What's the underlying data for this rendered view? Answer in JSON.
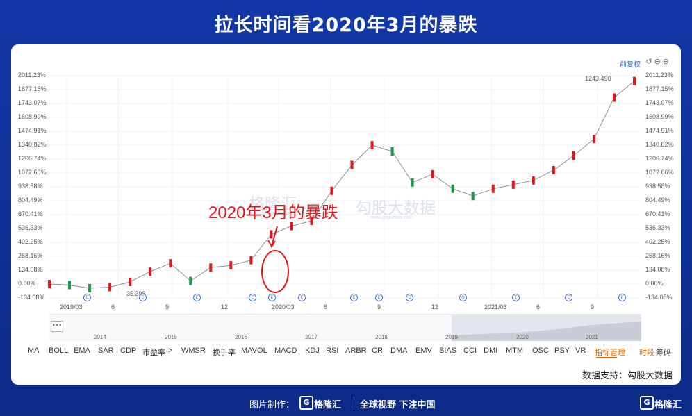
{
  "page_title": "拉长时间看2020年3月的暴跌",
  "corner_label": "前复权",
  "toolbar_icons": [
    "undo-icon",
    "zoom-out-icon",
    "zoom-in-icon"
  ],
  "annotation": "2020年3月的暴跌",
  "watermark": {
    "text1": "格隆汇",
    "sub1": "www.gelonghui.com",
    "text2": "勾股大数据",
    "sub2": "www.gogudata.com"
  },
  "navigator_years": [
    "2014",
    "2015",
    "2016",
    "2017",
    "2018",
    "2019",
    "2020",
    "2021"
  ],
  "indicator_tabs": [
    "MA",
    "BOLL",
    "EMA",
    "SAR",
    "CDP",
    "市盈率",
    ">",
    "WMSR",
    "换手率",
    "MAVOL",
    "MACD",
    "KDJ",
    "RSI",
    "ARBR",
    "CR",
    "DMA",
    "EMV",
    "BIAS",
    "CCI",
    "DMI",
    "MTM",
    "OSC",
    "PSY",
    "VR",
    "指标管理",
    "时段",
    "筹码"
  ],
  "highlight_tabs": [
    "指标管理",
    "时段"
  ],
  "data_support": "数据支持：勾股大数据",
  "footer": {
    "made_by": "图片制作：",
    "brand": "格隆汇",
    "slogan": "全球视野 下注中国",
    "brand_right": "格隆汇"
  },
  "event_markers": [
    "E",
    "E",
    "E",
    "E",
    "E",
    "E",
    "E",
    "E",
    "E",
    "Q",
    "E",
    "E",
    "E",
    "E",
    "E",
    "E"
  ],
  "colors": {
    "up": "#e0161b",
    "down": "#1a9a4a",
    "accent": "#3a6fc9",
    "bg": "#1238a8"
  },
  "chart_data": {
    "type": "line",
    "title": "",
    "y_labels": [
      "2011.23%",
      "1877.15%",
      "1743.07%",
      "1608.99%",
      "1474.91%",
      "1340.82%",
      "1206.74%",
      "1072.66%",
      "938.58%",
      "804.49%",
      "670.41%",
      "536.33%",
      "402.25%",
      "268.16%",
      "134.08%",
      "0.00%",
      "-134.08%"
    ],
    "ylim": [
      -134.08,
      2011.23
    ],
    "x_labels": [
      "2019/03",
      "6",
      "9",
      "12",
      "2020/03",
      "6",
      "9",
      "12",
      "2021/03",
      "6",
      "9"
    ],
    "annotations": {
      "max": "1243.490",
      "min": "35.398"
    },
    "series": [
      {
        "x": [
          "2019/01",
          "2019/03",
          "2019/06",
          "2019/09",
          "2019/12",
          "2020/01",
          "2020/02",
          "2020/03",
          "2020/04",
          "2020/05",
          "2020/06",
          "2020/07",
          "2020/08",
          "2020/09",
          "2020/10",
          "2020/11",
          "2020/12",
          "2021/01",
          "2021/02",
          "2021/03",
          "2021/04",
          "2021/05",
          "2021/06",
          "2021/07",
          "2021/08",
          "2021/09",
          "2021/10",
          "2021/11",
          "2021/11",
          "2021/12"
        ],
        "values": [
          0,
          -10,
          -40,
          -30,
          20,
          120,
          200,
          30,
          160,
          180,
          230,
          480,
          560,
          610,
          900,
          1150,
          1340,
          1280,
          980,
          1060,
          920,
          850,
          920,
          960,
          1000,
          1100,
          1240,
          1400,
          1800,
          1960
        ]
      }
    ]
  }
}
